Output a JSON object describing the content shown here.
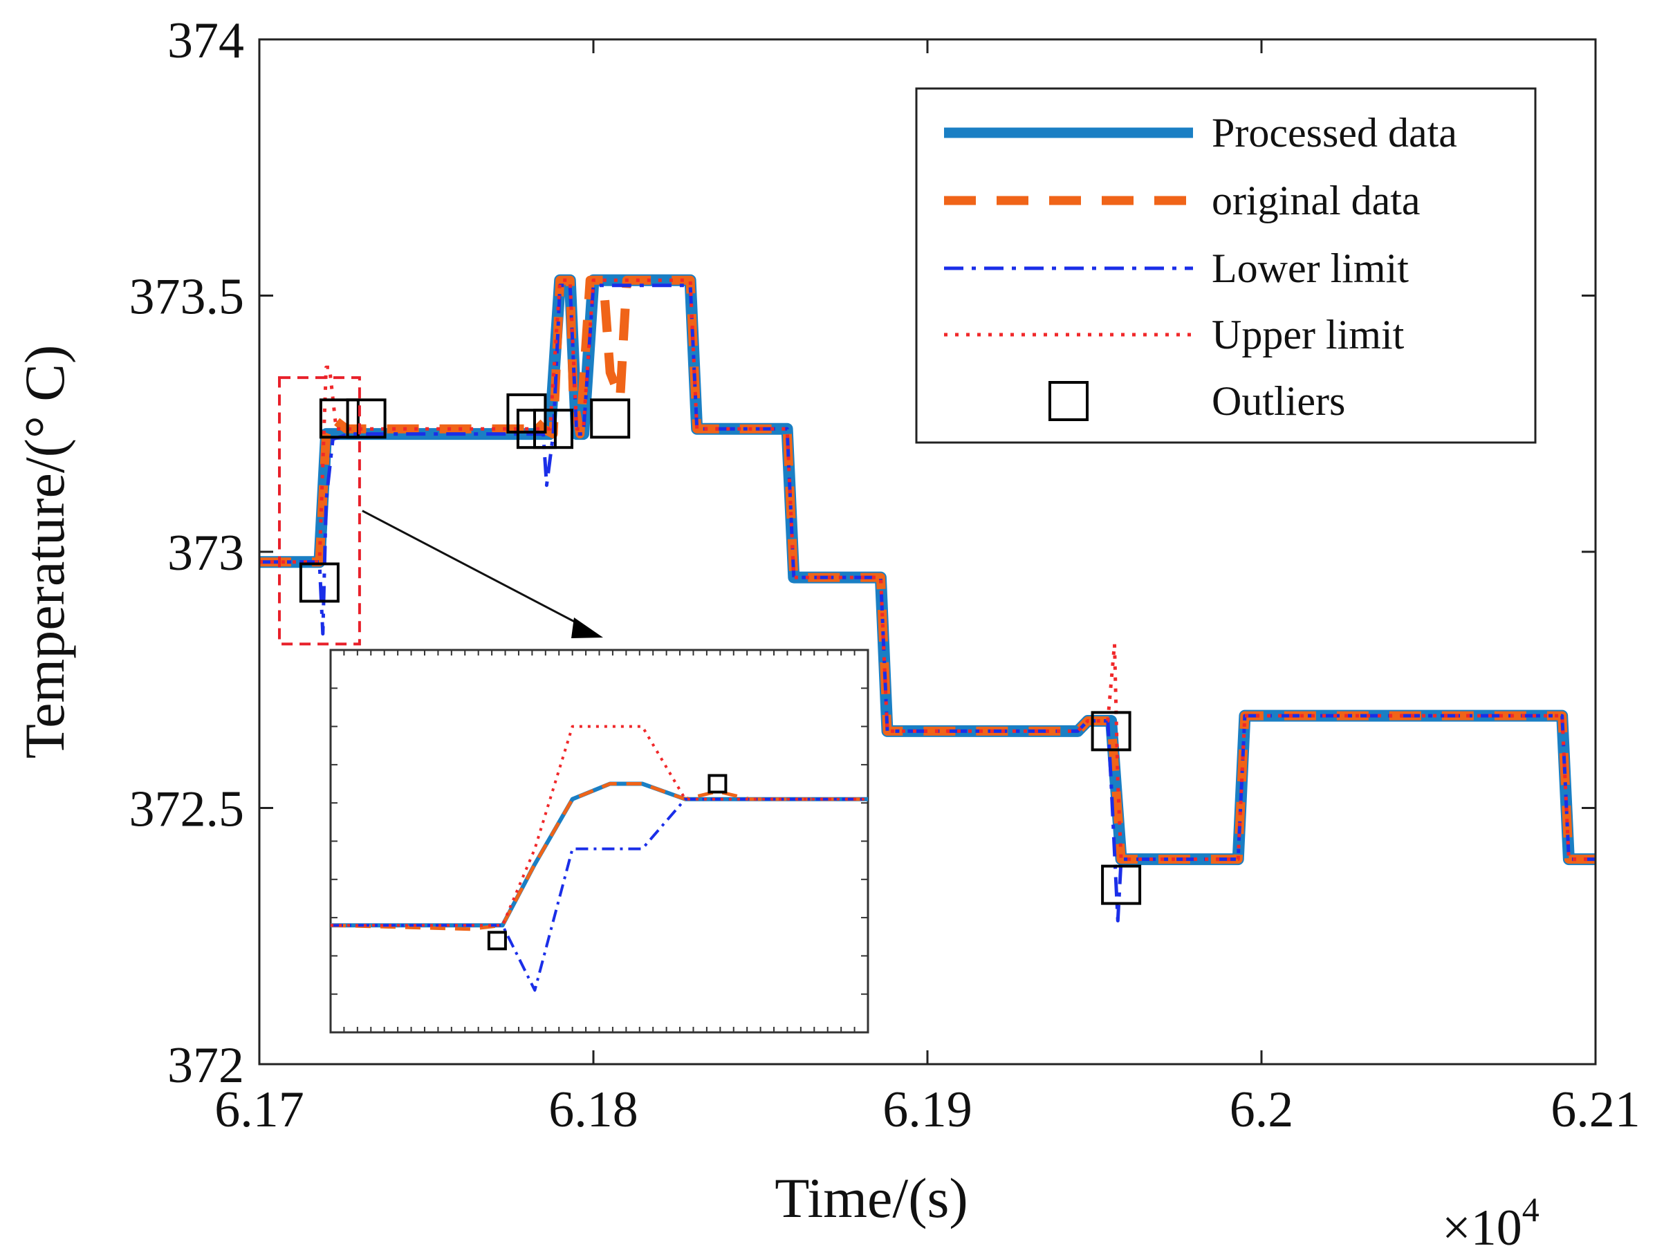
{
  "chart_data": {
    "type": "line",
    "xlabel": "Time/(s)",
    "ylabel": "Temperature/(° C)",
    "x_multiplier_label": {
      "base": "×10",
      "exponent": "4"
    },
    "xlim": [
      61700,
      62100
    ],
    "ylim": [
      372,
      374
    ],
    "x_ticks": [
      61700,
      61800,
      61900,
      62000,
      62100
    ],
    "x_tick_labels": [
      "6.17",
      "6.18",
      "6.19",
      "6.2",
      "6.21"
    ],
    "y_ticks": [
      372,
      372.5,
      373,
      373.5,
      374
    ],
    "y_tick_labels": [
      "372",
      "372.5",
      "373",
      "373.5",
      "374"
    ],
    "legend_position": "top-right",
    "colors": {
      "processed": "#1a7fc4",
      "original": "#f06418",
      "lower": "#1a2ee8",
      "upper": "#f0282a",
      "outlier": "#000000",
      "zoom_box": "#e8202a"
    },
    "series": [
      {
        "name": "Processed data",
        "style": "solid-thick",
        "points": [
          [
            61700,
            372.98
          ],
          [
            61718,
            372.98
          ],
          [
            61720,
            373.23
          ],
          [
            61727,
            373.23
          ],
          [
            61780,
            373.23
          ],
          [
            61787,
            373.23
          ],
          [
            61790,
            373.53
          ],
          [
            61793,
            373.53
          ],
          [
            61795,
            373.23
          ],
          [
            61797,
            373.23
          ],
          [
            61800,
            373.53
          ],
          [
            61829,
            373.53
          ],
          [
            61831,
            373.24
          ],
          [
            61858,
            373.24
          ],
          [
            61860,
            372.95
          ],
          [
            61886,
            372.95
          ],
          [
            61888,
            372.65
          ],
          [
            61945,
            372.65
          ],
          [
            61948,
            372.67
          ],
          [
            61955,
            372.67
          ],
          [
            61958,
            372.4
          ],
          [
            61993,
            372.4
          ],
          [
            61995,
            372.68
          ],
          [
            62090,
            372.68
          ],
          [
            62092,
            372.4
          ],
          [
            62100,
            372.4
          ]
        ]
      },
      {
        "name": "original data",
        "style": "dashed-thick",
        "points": [
          [
            61700,
            372.98
          ],
          [
            61718,
            372.98
          ],
          [
            61720,
            373.23
          ],
          [
            61722,
            373.26
          ],
          [
            61726,
            373.24
          ],
          [
            61780,
            373.24
          ],
          [
            61782,
            373.26
          ],
          [
            61785,
            373.24
          ],
          [
            61788,
            373.23
          ],
          [
            61790,
            373.53
          ],
          [
            61793,
            373.53
          ],
          [
            61794,
            373.3
          ],
          [
            61796,
            373.23
          ],
          [
            61799,
            373.53
          ],
          [
            61803,
            373.53
          ],
          [
            61805,
            373.35
          ],
          [
            61808,
            373.3
          ],
          [
            61810,
            373.53
          ],
          [
            61829,
            373.53
          ],
          [
            61831,
            373.24
          ],
          [
            61858,
            373.24
          ],
          [
            61860,
            372.95
          ],
          [
            61886,
            372.95
          ],
          [
            61888,
            372.65
          ],
          [
            61945,
            372.65
          ],
          [
            61948,
            372.67
          ],
          [
            61955,
            372.67
          ],
          [
            61958,
            372.4
          ],
          [
            61993,
            372.4
          ],
          [
            61995,
            372.68
          ],
          [
            62090,
            372.68
          ],
          [
            62092,
            372.4
          ],
          [
            62100,
            372.4
          ]
        ]
      },
      {
        "name": "Lower limit",
        "style": "dashdot",
        "points": [
          [
            61700,
            372.98
          ],
          [
            61718,
            372.98
          ],
          [
            61719,
            372.84
          ],
          [
            61720,
            373.1
          ],
          [
            61722,
            373.22
          ],
          [
            61727,
            373.23
          ],
          [
            61785,
            373.23
          ],
          [
            61786,
            373.13
          ],
          [
            61788,
            373.23
          ],
          [
            61790,
            373.52
          ],
          [
            61793,
            373.52
          ],
          [
            61795,
            373.23
          ],
          [
            61797,
            373.23
          ],
          [
            61800,
            373.52
          ],
          [
            61829,
            373.52
          ],
          [
            61831,
            373.24
          ],
          [
            61858,
            373.24
          ],
          [
            61860,
            372.95
          ],
          [
            61886,
            372.95
          ],
          [
            61888,
            372.65
          ],
          [
            61945,
            372.65
          ],
          [
            61948,
            372.67
          ],
          [
            61954,
            372.67
          ],
          [
            61955,
            372.55
          ],
          [
            61957,
            372.28
          ],
          [
            61958,
            372.4
          ],
          [
            61993,
            372.4
          ],
          [
            61995,
            372.68
          ],
          [
            62090,
            372.68
          ],
          [
            62092,
            372.4
          ],
          [
            62100,
            372.4
          ]
        ]
      },
      {
        "name": "Upper limit",
        "style": "dotted",
        "points": [
          [
            61700,
            372.98
          ],
          [
            61718,
            372.98
          ],
          [
            61720,
            373.36
          ],
          [
            61721,
            373.36
          ],
          [
            61723,
            373.24
          ],
          [
            61780,
            373.24
          ],
          [
            61787,
            373.24
          ],
          [
            61790,
            373.53
          ],
          [
            61793,
            373.53
          ],
          [
            61795,
            373.24
          ],
          [
            61797,
            373.24
          ],
          [
            61800,
            373.53
          ],
          [
            61829,
            373.53
          ],
          [
            61831,
            373.24
          ],
          [
            61858,
            373.24
          ],
          [
            61860,
            372.95
          ],
          [
            61886,
            372.95
          ],
          [
            61888,
            372.65
          ],
          [
            61945,
            372.65
          ],
          [
            61948,
            372.67
          ],
          [
            61954,
            372.67
          ],
          [
            61956,
            372.82
          ],
          [
            61957,
            372.55
          ],
          [
            61958,
            372.4
          ],
          [
            61993,
            372.4
          ],
          [
            61995,
            372.68
          ],
          [
            62090,
            372.68
          ],
          [
            62092,
            372.4
          ],
          [
            62100,
            372.4
          ]
        ]
      }
    ],
    "outliers": {
      "name": "Outliers",
      "points": [
        [
          61718,
          372.94
        ],
        [
          61724,
          373.26
        ],
        [
          61732,
          373.26
        ],
        [
          61780,
          373.27
        ],
        [
          61783,
          373.24
        ],
        [
          61788,
          373.24
        ],
        [
          61805,
          373.26
        ],
        [
          61955,
          372.65
        ],
        [
          61958,
          372.35
        ]
      ]
    },
    "zoom_region": {
      "x": [
        61706,
        61730
      ],
      "y": [
        372.82,
        373.34
      ]
    },
    "inset": {
      "description_x": [
        0,
        100
      ],
      "description_y": [
        0,
        100
      ],
      "series": [
        {
          "name": "Processed data",
          "points": [
            [
              0,
              28
            ],
            [
              32,
              28
            ],
            [
              38,
              44
            ],
            [
              45,
              61
            ],
            [
              52,
              65
            ],
            [
              58,
              65
            ],
            [
              66,
              61
            ],
            [
              100,
              61
            ]
          ]
        },
        {
          "name": "original data",
          "points": [
            [
              0,
              28
            ],
            [
              26,
              27
            ],
            [
              32,
              28
            ],
            [
              38,
              44
            ],
            [
              45,
              61
            ],
            [
              52,
              65
            ],
            [
              58,
              65
            ],
            [
              66,
              61
            ],
            [
              72,
              63
            ],
            [
              78,
              61
            ],
            [
              100,
              61
            ]
          ]
        },
        {
          "name": "Lower limit",
          "points": [
            [
              0,
              28
            ],
            [
              32,
              28
            ],
            [
              38,
              11
            ],
            [
              45,
              48
            ],
            [
              58,
              48
            ],
            [
              66,
              61
            ],
            [
              100,
              61
            ]
          ]
        },
        {
          "name": "Upper limit",
          "points": [
            [
              0,
              28
            ],
            [
              32,
              28
            ],
            [
              38,
              48
            ],
            [
              45,
              80
            ],
            [
              58,
              80
            ],
            [
              66,
              61
            ],
            [
              100,
              61
            ]
          ]
        }
      ],
      "outliers": [
        [
          31,
          24
        ],
        [
          72,
          65
        ]
      ]
    }
  }
}
